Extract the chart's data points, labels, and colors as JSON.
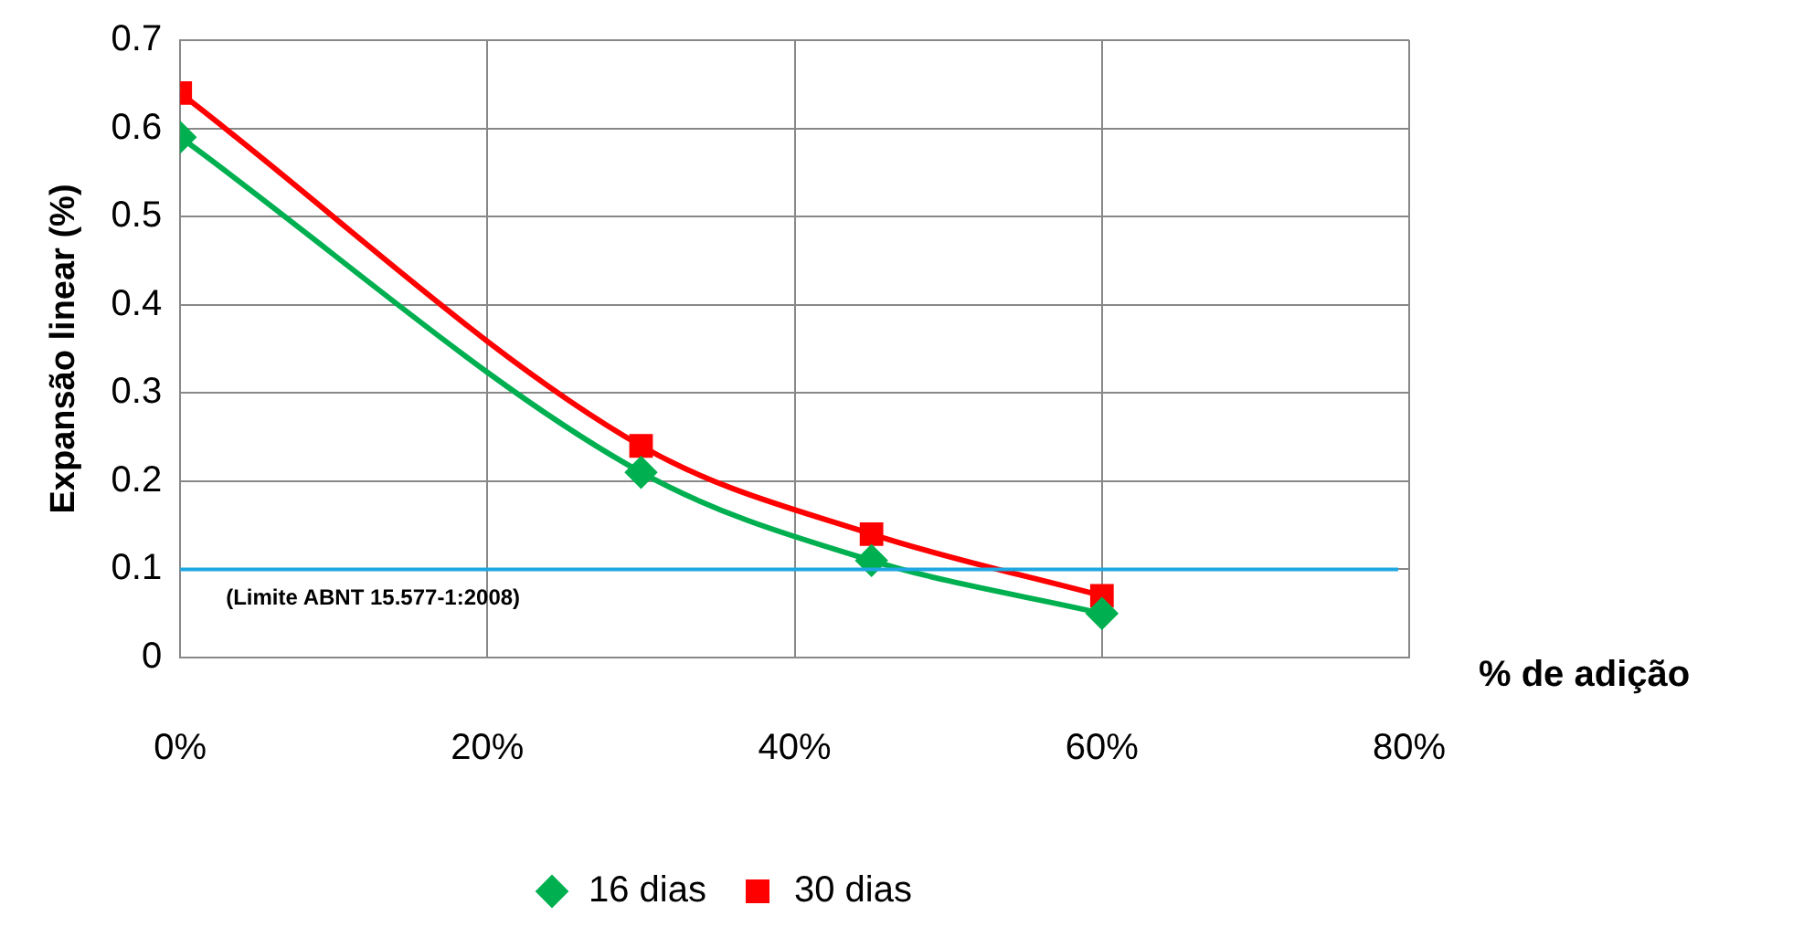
{
  "chart_data": {
    "type": "line",
    "xlabel": "% de adição",
    "ylabel": "Expansão linear (%)",
    "x": [
      0,
      30,
      45,
      60
    ],
    "series": [
      {
        "name": "16 dias",
        "color": "#00b050",
        "marker": "diamond",
        "values": [
          0.59,
          0.21,
          0.11,
          0.05
        ]
      },
      {
        "name": "30 dias",
        "color": "#ff0000",
        "marker": "square",
        "values": [
          0.64,
          0.24,
          0.14,
          0.07
        ]
      }
    ],
    "xlim": [
      0,
      80
    ],
    "xticks": [
      {
        "value": 0,
        "label": "0%"
      },
      {
        "value": 20,
        "label": "20%"
      },
      {
        "value": 40,
        "label": "40%"
      },
      {
        "value": 60,
        "label": "60%"
      },
      {
        "value": 80,
        "label": "80%"
      }
    ],
    "ylim": [
      0,
      0.7
    ],
    "yticks": [
      0,
      0.1,
      0.2,
      0.3,
      0.4,
      0.5,
      0.6,
      0.7
    ],
    "ref_lines": [
      {
        "axis": "y",
        "value": 0.1,
        "color": "#1ea7e0"
      }
    ],
    "annotations": [
      "(Limite ABNT 15.577-1:2008)"
    ],
    "grid": true,
    "legend": "bottom"
  }
}
